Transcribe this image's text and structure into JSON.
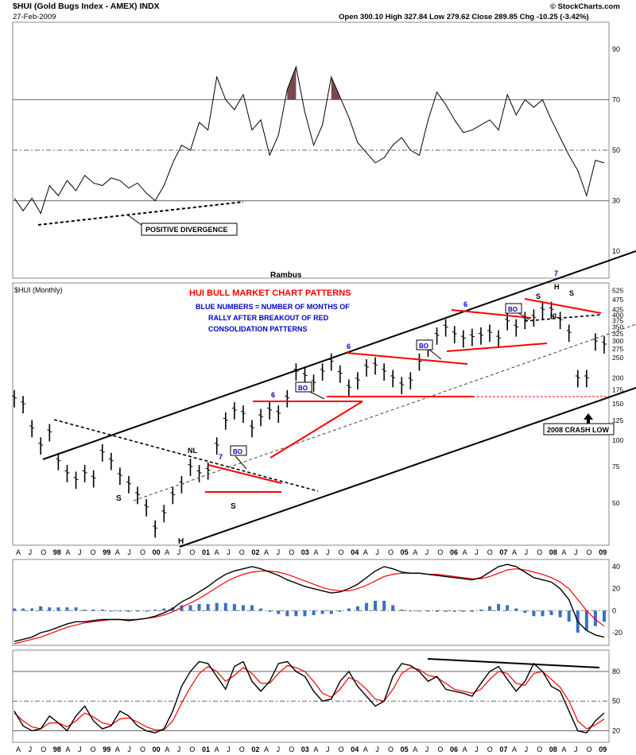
{
  "header": {
    "symbol_line": "$HUI (Gold Bugs Index - AMEX) INDX",
    "date": "27-Feb-2009",
    "ohlc": "Open 300.10  High 327.84  Low 279.62  Close 289.85  Chg -10.25 (-3.42%)",
    "brand": "© StockCharts.com"
  },
  "colors": {
    "price": "#000000",
    "trendline": "#000000",
    "pattern": "#ff0000",
    "annotation_blue": "#0000cc",
    "histogram": "#3a6fc4",
    "signal": "#ff0000",
    "rsi_fill": "#7a4a4a"
  },
  "chart_data": [
    {
      "type": "line",
      "panel": "rsi_top",
      "title": "",
      "ylim": [
        0,
        100
      ],
      "ticks": [
        10,
        30,
        50,
        70,
        90
      ],
      "reference_lines": [
        30,
        50,
        70
      ],
      "x": [
        "1998-01",
        "1998-03",
        "1998-05",
        "1998-07",
        "1998-09",
        "1998-11",
        "1999-01",
        "1999-03",
        "1999-05",
        "1999-07",
        "1999-09",
        "1999-11",
        "2000-01",
        "2000-03",
        "2000-05",
        "2000-07",
        "2000-09",
        "2000-11",
        "2001-01",
        "2001-03",
        "2001-05",
        "2001-07",
        "2001-09",
        "2001-11",
        "2002-01",
        "2002-03",
        "2002-05",
        "2002-07",
        "2002-09",
        "2002-11",
        "2003-01",
        "2003-03",
        "2003-05",
        "2003-07",
        "2003-09",
        "2003-11",
        "2004-01",
        "2004-03",
        "2004-05",
        "2004-07",
        "2004-09",
        "2004-11",
        "2005-01",
        "2005-03",
        "2005-05",
        "2005-07",
        "2005-09",
        "2005-11",
        "2006-01",
        "2006-03",
        "2006-05",
        "2006-07",
        "2006-09",
        "2006-11",
        "2007-01",
        "2007-03",
        "2007-05",
        "2007-07",
        "2007-09",
        "2007-11",
        "2008-01",
        "2008-03",
        "2008-05",
        "2008-07",
        "2008-09",
        "2008-11",
        "2009-01",
        "2009-02"
      ],
      "values": [
        31,
        26,
        31,
        25,
        36,
        32,
        38,
        34,
        40,
        37,
        36,
        39,
        38,
        35,
        37,
        33,
        30,
        36,
        45,
        52,
        50,
        61,
        58,
        79,
        70,
        66,
        72,
        58,
        62,
        48,
        56,
        74,
        83,
        65,
        52,
        60,
        79,
        71,
        63,
        53,
        49,
        45,
        47,
        52,
        55,
        50,
        48,
        62,
        73,
        68,
        62,
        57,
        58,
        60,
        62,
        58,
        72,
        64,
        70,
        67,
        70,
        62,
        55,
        48,
        42,
        32,
        46,
        45
      ],
      "labels": [
        "POSITIVE DIVERGENCE",
        "Rambus"
      ]
    },
    {
      "type": "line",
      "panel": "price",
      "title": "$HUI (Monthly)",
      "scale": "log",
      "ylim": [
        32,
        560
      ],
      "ticks": [
        50,
        75,
        100,
        125,
        150,
        175,
        200,
        250,
        275,
        300,
        325,
        350,
        375,
        400,
        425,
        475,
        525
      ],
      "x_ticks": [
        "A",
        "J",
        "O",
        "98",
        "A",
        "J",
        "O",
        "99",
        "A",
        "J",
        "O",
        "00",
        "A",
        "J",
        "O",
        "01",
        "A",
        "J",
        "O",
        "02",
        "A",
        "J",
        "O",
        "03",
        "A",
        "J",
        "O",
        "04",
        "A",
        "J",
        "O",
        "05",
        "A",
        "J",
        "O",
        "06",
        "A",
        "J",
        "O",
        "07",
        "A",
        "J",
        "O",
        "08",
        "A",
        "J",
        "O",
        "09"
      ],
      "x": [
        "1998-01",
        "1998-03",
        "1998-05",
        "1998-07",
        "1998-09",
        "1998-11",
        "1999-01",
        "1999-03",
        "1999-05",
        "1999-07",
        "1999-09",
        "1999-11",
        "2000-01",
        "2000-03",
        "2000-05",
        "2000-07",
        "2000-09",
        "2000-11",
        "2001-01",
        "2001-03",
        "2001-05",
        "2001-07",
        "2001-09",
        "2001-11",
        "2002-01",
        "2002-03",
        "2002-05",
        "2002-07",
        "2002-09",
        "2002-11",
        "2003-01",
        "2003-03",
        "2003-05",
        "2003-07",
        "2003-09",
        "2003-11",
        "2004-01",
        "2004-03",
        "2004-05",
        "2004-07",
        "2004-09",
        "2004-11",
        "2005-01",
        "2005-03",
        "2005-05",
        "2005-07",
        "2005-09",
        "2005-11",
        "2006-01",
        "2006-03",
        "2006-05",
        "2006-07",
        "2006-09",
        "2006-11",
        "2007-01",
        "2007-03",
        "2007-05",
        "2007-07",
        "2007-09",
        "2007-11",
        "2008-01",
        "2008-03",
        "2008-05",
        "2008-07",
        "2008-09",
        "2008-11",
        "2009-01",
        "2009-02"
      ],
      "values": [
        160,
        150,
        115,
        95,
        110,
        80,
        70,
        65,
        70,
        66,
        88,
        80,
        68,
        62,
        55,
        48,
        38,
        45,
        55,
        62,
        75,
        70,
        72,
        95,
        125,
        140,
        135,
        115,
        130,
        140,
        135,
        160,
        215,
        205,
        190,
        215,
        240,
        210,
        180,
        195,
        225,
        230,
        215,
        200,
        185,
        195,
        240,
        280,
        320,
        350,
        325,
        310,
        315,
        320,
        330,
        310,
        375,
        350,
        380,
        390,
        425,
        425,
        380,
        330,
        200,
        200,
        300,
        290
      ],
      "labels": [
        "HUI BULL MARKET CHART PATTERNS",
        "BLUE NUMBERS = NUMBER OF MONTHS OF",
        "RALLY AFTER BREAKOUT OF RED",
        "CONSOLIDATION PATTERNS",
        "NL",
        "S",
        "H",
        "BO",
        "2008 CRASH LOW"
      ],
      "annotations": {
        "month_counts": [
          "7",
          "6",
          "6",
          "6",
          "7"
        ],
        "breakout": "BO",
        "head_shoulders": [
          "S",
          "H",
          "S"
        ]
      }
    },
    {
      "type": "line",
      "panel": "macd",
      "ylim": [
        -30,
        45
      ],
      "ticks": [
        -20,
        0,
        20,
        40
      ],
      "series": [
        {
          "values": [
            -28,
            -26,
            -24,
            -20,
            -18,
            -15,
            -12,
            -10,
            -10,
            -9,
            -8,
            -8,
            -8,
            -9,
            -8,
            -7,
            -5,
            -2,
            2,
            8,
            12,
            17,
            22,
            28,
            33,
            36,
            38,
            40,
            38,
            35,
            32,
            28,
            25,
            22,
            20,
            18,
            16,
            17,
            20,
            24,
            30,
            36,
            40,
            38,
            35,
            34,
            34,
            33,
            32,
            31,
            30,
            29,
            28,
            30,
            35,
            40,
            42,
            40,
            35,
            30,
            28,
            26,
            20,
            10,
            -10,
            -18,
            -22,
            -24
          ]
        },
        {
          "values": [
            -30,
            -28,
            -26,
            -24,
            -21,
            -18,
            -15,
            -13,
            -11,
            -10,
            -9,
            -8,
            -8,
            -8,
            -8,
            -7,
            -6,
            -4,
            -1,
            3,
            7,
            11,
            16,
            21,
            26,
            30,
            33,
            35,
            36,
            36,
            35,
            33,
            30,
            27,
            24,
            21,
            19,
            18,
            18,
            20,
            23,
            27,
            31,
            33,
            34,
            34,
            34,
            33,
            33,
            32,
            31,
            30,
            29,
            29,
            31,
            34,
            37,
            38,
            37,
            35,
            33,
            30,
            26,
            20,
            10,
            0,
            -8,
            -14
          ]
        },
        {
          "values": [
            2,
            2,
            2,
            4,
            3,
            3,
            3,
            3,
            1,
            1,
            1,
            0,
            0,
            -1,
            0,
            0,
            1,
            2,
            3,
            5,
            5,
            6,
            6,
            7,
            7,
            6,
            5,
            5,
            2,
            -1,
            -3,
            -5,
            -5,
            -5,
            -4,
            -3,
            -3,
            -1,
            2,
            4,
            7,
            9,
            9,
            5,
            1,
            0,
            0,
            0,
            -1,
            -1,
            -1,
            -1,
            -1,
            1,
            4,
            6,
            5,
            2,
            -2,
            -5,
            -5,
            -4,
            -6,
            -10,
            -20,
            -18,
            -14,
            -10
          ]
        }
      ]
    },
    {
      "type": "line",
      "panel": "rsi_bottom",
      "ylim": [
        10,
        100
      ],
      "ticks": [
        20,
        50,
        80
      ],
      "reference_lines": [
        20,
        50,
        80
      ],
      "x_ticks": [
        "A",
        "J",
        "O",
        "98",
        "A",
        "J",
        "O",
        "99",
        "A",
        "J",
        "O",
        "00",
        "A",
        "J",
        "O",
        "01",
        "A",
        "J",
        "O",
        "02",
        "A",
        "J",
        "O",
        "03",
        "A",
        "J",
        "O",
        "04",
        "A",
        "J",
        "O",
        "05",
        "A",
        "J",
        "O",
        "06",
        "A",
        "J",
        "O",
        "07",
        "A",
        "J",
        "O",
        "08",
        "A",
        "J",
        "O",
        "09"
      ],
      "series": [
        {
          "values": [
            40,
            25,
            20,
            22,
            35,
            28,
            20,
            35,
            45,
            30,
            22,
            25,
            40,
            35,
            25,
            20,
            18,
            22,
            40,
            65,
            80,
            90,
            88,
            75,
            62,
            85,
            90,
            70,
            60,
            70,
            88,
            90,
            80,
            75,
            60,
            50,
            52,
            70,
            80,
            65,
            55,
            45,
            50,
            75,
            88,
            86,
            80,
            70,
            75,
            62,
            60,
            58,
            55,
            68,
            80,
            85,
            72,
            60,
            70,
            88,
            80,
            65,
            60,
            40,
            20,
            18,
            30,
            38
          ]
        },
        {
          "values": [
            38,
            30,
            24,
            22,
            28,
            28,
            24,
            30,
            38,
            34,
            28,
            26,
            32,
            33,
            29,
            24,
            21,
            21,
            30,
            48,
            64,
            78,
            85,
            80,
            70,
            76,
            84,
            78,
            68,
            68,
            78,
            86,
            84,
            80,
            70,
            58,
            54,
            62,
            74,
            70,
            62,
            52,
            50,
            62,
            78,
            84,
            82,
            76,
            74,
            68,
            62,
            60,
            58,
            62,
            72,
            80,
            78,
            68,
            66,
            78,
            80,
            72,
            64,
            50,
            30,
            22,
            26,
            32
          ]
        }
      ]
    }
  ]
}
